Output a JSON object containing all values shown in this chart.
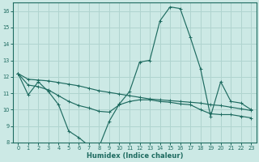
{
  "xlabel": "Humidex (Indice chaleur)",
  "bg_color": "#cce9e5",
  "grid_color": "#b0d4cf",
  "line_color": "#1e6b60",
  "xlim": [
    -0.5,
    23.5
  ],
  "ylim": [
    8,
    16.5
  ],
  "xticks": [
    0,
    1,
    2,
    3,
    4,
    5,
    6,
    7,
    8,
    9,
    10,
    11,
    12,
    13,
    14,
    15,
    16,
    17,
    18,
    19,
    20,
    21,
    22,
    23
  ],
  "yticks": [
    8,
    9,
    10,
    11,
    12,
    13,
    14,
    15,
    16
  ],
  "line1_x": [
    0,
    1,
    2,
    3,
    4,
    5,
    6,
    7,
    8,
    9,
    10,
    11,
    12,
    13,
    14,
    15,
    16,
    17,
    18,
    19,
    20,
    21,
    22,
    23
  ],
  "line1_y": [
    12.2,
    10.9,
    11.7,
    11.1,
    10.3,
    8.7,
    8.3,
    7.8,
    7.75,
    9.3,
    10.35,
    11.1,
    12.9,
    13.0,
    15.4,
    16.25,
    16.15,
    14.4,
    12.5,
    9.6,
    11.7,
    10.5,
    10.4,
    10.0
  ],
  "line2_x": [
    0,
    1,
    2,
    3,
    4,
    5,
    6,
    7,
    8,
    9,
    10,
    11,
    12,
    13,
    14,
    15,
    16,
    17,
    18,
    19,
    20,
    21,
    22,
    23
  ],
  "line2_y": [
    12.2,
    11.85,
    11.8,
    11.75,
    11.65,
    11.55,
    11.45,
    11.3,
    11.15,
    11.05,
    10.95,
    10.85,
    10.75,
    10.65,
    10.6,
    10.55,
    10.5,
    10.45,
    10.4,
    10.3,
    10.25,
    10.15,
    10.05,
    9.95
  ],
  "line3_x": [
    0,
    1,
    2,
    3,
    4,
    5,
    6,
    7,
    8,
    9,
    10,
    11,
    12,
    13,
    14,
    15,
    16,
    17,
    18,
    19,
    20,
    21,
    22,
    23
  ],
  "line3_y": [
    12.2,
    11.5,
    11.4,
    11.2,
    10.85,
    10.5,
    10.25,
    10.1,
    9.9,
    9.85,
    10.3,
    10.5,
    10.6,
    10.6,
    10.5,
    10.45,
    10.35,
    10.3,
    10.0,
    9.75,
    9.7,
    9.7,
    9.6,
    9.5
  ]
}
